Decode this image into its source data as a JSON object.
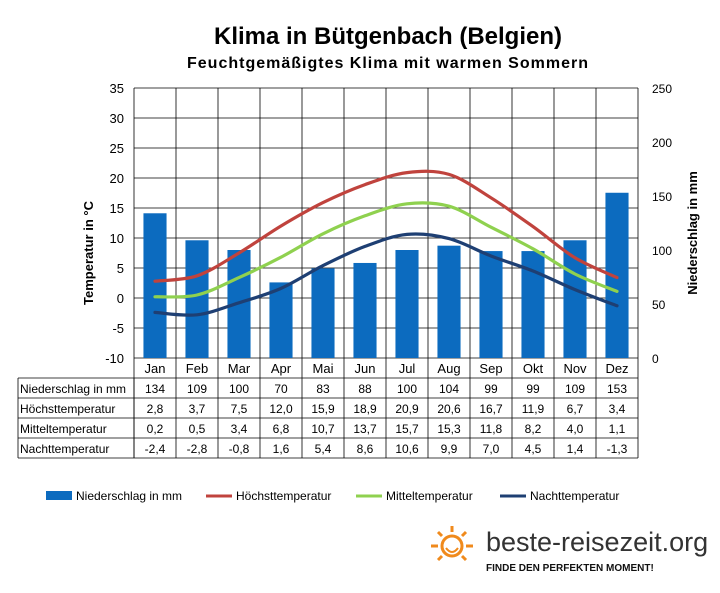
{
  "title": "Klima in Bütgenbach (Belgien)",
  "subtitle": "Feuchtgemäßigtes Klima mit warmen Sommern",
  "colors": {
    "precip": "#0c6bbf",
    "max": "#c0433d",
    "mean": "#8fd14f",
    "min": "#1e3f73",
    "grid": "#000000",
    "brand_orange": "#f08a1c"
  },
  "chart_data": {
    "type": "bar",
    "categories": [
      "Jan",
      "Feb",
      "Mar",
      "Apr",
      "Mai",
      "Jun",
      "Jul",
      "Aug",
      "Sep",
      "Okt",
      "Nov",
      "Dez"
    ],
    "ylabel_left": "Temperatur in °C",
    "ylabel_right": "Niederschlag in mm",
    "ylim_left": [
      -10,
      35
    ],
    "ylim_right": [
      0,
      250
    ],
    "yticks_left": [
      "35",
      "30",
      "25",
      "20",
      "15",
      "10",
      "5",
      "0",
      "-5",
      "-10"
    ],
    "yticks_right": [
      "250",
      "200",
      "150",
      "100",
      "50",
      "0"
    ],
    "grid": true,
    "legend_position": "bottom",
    "series": [
      {
        "name": "Niederschlag in mm",
        "kind": "bar",
        "axis": "right",
        "color": "#0c6bbf",
        "values": [
          134,
          109,
          100,
          70,
          83,
          88,
          100,
          104,
          99,
          99,
          109,
          153
        ],
        "labels": [
          "134",
          "109",
          "100",
          "70",
          "83",
          "88",
          "100",
          "104",
          "99",
          "99",
          "109",
          "153"
        ]
      },
      {
        "name": "Höchsttemperatur",
        "kind": "line",
        "axis": "left",
        "color": "#c0433d",
        "values": [
          2.8,
          3.7,
          7.5,
          12.0,
          15.9,
          18.9,
          20.9,
          20.6,
          16.7,
          11.9,
          6.7,
          3.4
        ],
        "labels": [
          "2,8",
          "3,7",
          "7,5",
          "12,0",
          "15,9",
          "18,9",
          "20,9",
          "20,6",
          "16,7",
          "11,9",
          "6,7",
          "3,4"
        ]
      },
      {
        "name": "Mitteltemperatur",
        "kind": "line",
        "axis": "left",
        "color": "#8fd14f",
        "values": [
          0.2,
          0.5,
          3.4,
          6.8,
          10.7,
          13.7,
          15.7,
          15.3,
          11.8,
          8.2,
          4.0,
          1.1
        ],
        "labels": [
          "0,2",
          "0,5",
          "3,4",
          "6,8",
          "10,7",
          "13,7",
          "15,7",
          "15,3",
          "11,8",
          "8,2",
          "4,0",
          "1,1"
        ]
      },
      {
        "name": "Nachttemperatur",
        "kind": "line",
        "axis": "left",
        "color": "#1e3f73",
        "values": [
          -2.4,
          -2.8,
          -0.8,
          1.6,
          5.4,
          8.6,
          10.6,
          9.9,
          7.0,
          4.5,
          1.4,
          -1.3
        ],
        "labels": [
          "-2,4",
          "-2,8",
          "-0,8",
          "1,6",
          "5,4",
          "8,6",
          "10,6",
          "9,9",
          "7,0",
          "4,5",
          "1,4",
          "-1,3"
        ]
      }
    ]
  },
  "brand": {
    "name": "beste-reisezeit.org",
    "slogan": "FINDE DEN PERFEKTEN MOMENT!"
  }
}
